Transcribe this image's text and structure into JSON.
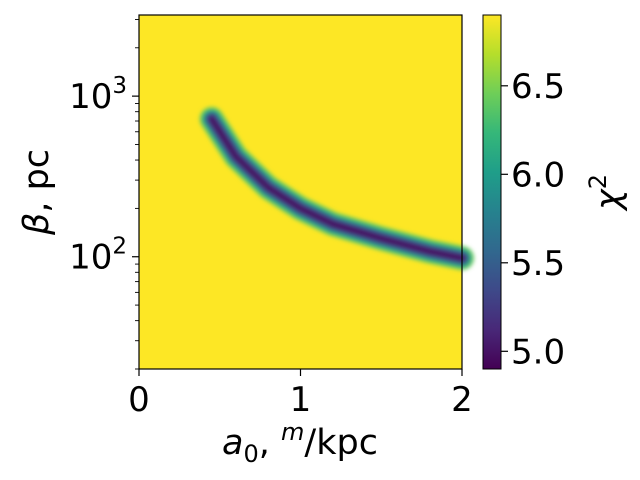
{
  "chart_data": {
    "type": "heatmap",
    "title": "",
    "xlabel": {
      "prefix": "a",
      "sub": "0",
      "mid": ", ",
      "sup": "m",
      "suffix": "/kpc"
    },
    "ylabel": {
      "symbol": "β",
      "suffix": ", pc"
    },
    "xlim": [
      0,
      2
    ],
    "ylim": [
      20,
      3200
    ],
    "y_scale": "log",
    "x_ticks": [
      {
        "value": 0,
        "label": "0"
      },
      {
        "value": 1,
        "label": "1"
      },
      {
        "value": 2,
        "label": "2"
      }
    ],
    "y_ticks": [
      {
        "value": 100,
        "base": "10",
        "exp": "2"
      },
      {
        "value": 1000,
        "base": "10",
        "exp": "3"
      }
    ],
    "background_value": 6.9,
    "valley": {
      "points": [
        [
          0.45,
          720
        ],
        [
          0.6,
          420
        ],
        [
          0.8,
          270
        ],
        [
          1.0,
          200
        ],
        [
          1.2,
          160
        ],
        [
          1.5,
          130
        ],
        [
          1.8,
          108
        ],
        [
          2.0,
          98
        ]
      ],
      "min_value": 4.9,
      "start_x": 0.42
    },
    "colorbar": {
      "label": {
        "base": "χ",
        "exp": "2"
      },
      "range": [
        4.9,
        6.9
      ],
      "ticks": [
        {
          "value": 5.0,
          "label": "5.0"
        },
        {
          "value": 5.5,
          "label": "5.5"
        },
        {
          "value": 6.0,
          "label": "6.0"
        },
        {
          "value": 6.5,
          "label": "6.5"
        }
      ],
      "colormap": "viridis",
      "colors": [
        "#440154",
        "#482878",
        "#3e4989",
        "#31688e",
        "#26828e",
        "#1f9e89",
        "#35b779",
        "#6ece58",
        "#b5de2b",
        "#fde725"
      ]
    }
  }
}
